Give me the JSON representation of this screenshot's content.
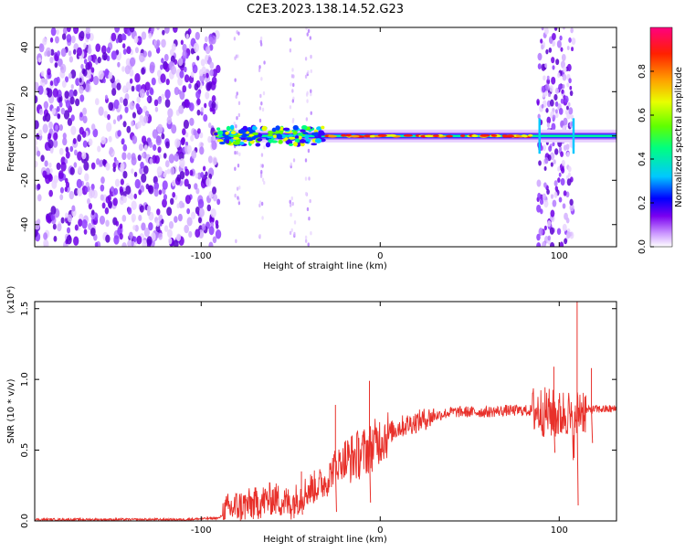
{
  "page_title": "C2E3.2023.138.14.52.G23",
  "chart_data": [
    {
      "type": "heatmap",
      "title": "C2E3.2023.138.14.52.G23",
      "xlabel": "Height of straight line (km)",
      "ylabel": "Frequency (Hz)",
      "xlim": [
        -193,
        132
      ],
      "ylim": [
        -50,
        49
      ],
      "x_ticks": [
        -100,
        0,
        100
      ],
      "y_ticks": [
        -40,
        -20,
        0,
        20,
        40
      ],
      "colorbar": {
        "label": "Normalized spectral amplitude",
        "range": [
          0.0,
          1.0
        ],
        "ticks": [
          "0.0",
          "0.2",
          "0.4",
          "0.6",
          "0.8"
        ],
        "colormap": [
          "#ffffff",
          "#cc99ff",
          "#7a00f0",
          "#0000ff",
          "#00c8ff",
          "#00ff80",
          "#60ff00",
          "#e8ff00",
          "#ffa000",
          "#ff2000",
          "#ff0080"
        ]
      },
      "features": [
        {
          "name": "noise field",
          "x_range": [
            -193,
            -90
          ],
          "freq_range": [
            -50,
            49
          ]
        },
        {
          "name": "signal band",
          "x_range": [
            -92,
            132
          ],
          "center_freq": 0
        },
        {
          "name": "noise burst",
          "x_range": [
            88,
            108
          ],
          "freq_range": [
            -50,
            49
          ]
        }
      ]
    },
    {
      "type": "line",
      "xlabel": "Height of straight line (km)",
      "ylabel": "SNR (10 * v/v)",
      "y_multiplier": "(x10⁴)",
      "xlim": [
        -193,
        132
      ],
      "ylim": [
        0.0,
        1.55
      ],
      "x_ticks": [
        -100,
        0,
        100
      ],
      "y_ticks": [
        "0.0",
        "0.5",
        "1.0",
        "1.5"
      ],
      "line_color": "#e8302a",
      "series": [
        {
          "x": [
            -193,
            -150,
            -110,
            -90,
            -85,
            -80,
            -70,
            -60,
            -50,
            -40,
            -30,
            -25,
            -20,
            -15,
            -10,
            -5,
            0,
            10,
            20,
            30,
            40,
            50,
            60,
            70,
            80,
            88,
            95,
            100,
            105,
            108,
            110,
            112,
            115,
            120,
            132
          ],
          "values": [
            0.01,
            0.01,
            0.01,
            0.02,
            0.08,
            0.1,
            0.12,
            0.16,
            0.12,
            0.22,
            0.28,
            0.4,
            0.42,
            0.45,
            0.48,
            0.52,
            0.58,
            0.66,
            0.7,
            0.74,
            0.77,
            0.77,
            0.77,
            0.78,
            0.78,
            0.78,
            0.76,
            0.74,
            0.78,
            0.6,
            0.75,
            0.8,
            0.78,
            0.79,
            0.79
          ],
          "peaks": [
            {
              "x": -44,
              "y": 0.35
            },
            {
              "x": -25,
              "y": 0.82
            },
            {
              "x": -6,
              "y": 0.99
            },
            {
              "x": 97,
              "y": 1.09
            },
            {
              "x": 110,
              "y": 1.55
            },
            {
              "x": 118,
              "y": 1.08
            }
          ]
        }
      ]
    }
  ]
}
